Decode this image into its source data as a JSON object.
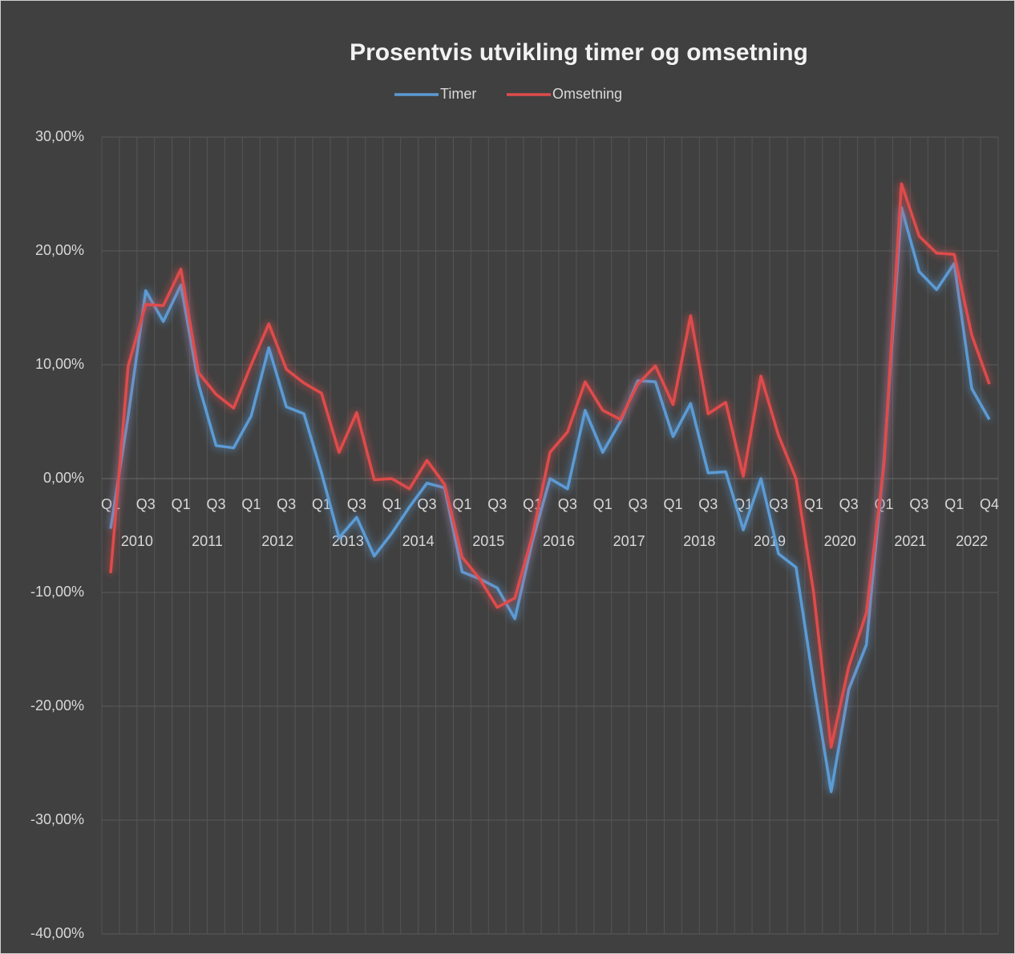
{
  "chart_data": {
    "type": "line",
    "title": "Prosentvis utvikling timer og omsetning",
    "categories": [
      "Q1",
      null,
      "Q3",
      null,
      "Q1",
      null,
      "Q3",
      null,
      "Q1",
      null,
      "Q3",
      null,
      "Q1",
      null,
      "Q3",
      null,
      "Q1",
      null,
      "Q3",
      null,
      "Q1",
      null,
      "Q3",
      null,
      "Q1",
      null,
      "Q3",
      null,
      "Q1",
      null,
      "Q3",
      null,
      "Q1",
      null,
      "Q3",
      null,
      "Q1",
      null,
      "Q3",
      null,
      "Q1",
      null,
      "Q3",
      null,
      "Q1",
      null,
      "Q3",
      null,
      "Q1",
      null,
      "Q4"
    ],
    "category_groups": [
      "2010",
      "2011",
      "2012",
      "2013",
      "2014",
      "2015",
      "2016",
      "2017",
      "2018",
      "2019",
      "2020",
      "2021",
      "2022"
    ],
    "series": [
      {
        "name": "Timer",
        "color": "#5b9bd5",
        "values": [
          -4.4,
          5.5,
          16.5,
          13.8,
          17.0,
          8.3,
          2.9,
          2.7,
          5.5,
          11.5,
          6.3,
          5.7,
          0.5,
          -5.2,
          -3.4,
          -6.8,
          -4.8,
          -2.5,
          -0.4,
          -0.8,
          -8.2,
          -8.8,
          -9.6,
          -12.3,
          -5.5,
          0.0,
          -0.9,
          6.0,
          2.3,
          5.0,
          8.6,
          8.5,
          3.7,
          6.6,
          0.5,
          0.6,
          -4.5,
          0.0,
          -6.6,
          -7.8,
          -18,
          -27.5,
          -18.5,
          -14.6,
          1.5,
          23.8,
          18.2,
          16.6,
          18.9,
          7.9,
          5.2
        ]
      },
      {
        "name": "Omsetning",
        "color": "#e04c4c",
        "values": [
          -8.3,
          9.9,
          15.3,
          15.2,
          18.4,
          9.3,
          7.4,
          6.2,
          10.0,
          13.6,
          9.6,
          8.4,
          7.5,
          2.3,
          5.8,
          -0.1,
          0.0,
          -0.9,
          1.6,
          -0.5,
          -6.9,
          -8.8,
          -11.3,
          -10.5,
          -5.0,
          2.3,
          4.1,
          8.5,
          6.0,
          5.2,
          8.3,
          9.9,
          6.5,
          14.3,
          5.7,
          6.7,
          0.2,
          9.0,
          3.8,
          0.0,
          -10,
          -23.6,
          -16.5,
          -11.8,
          1.2,
          25.9,
          21.3,
          19.8,
          19.7,
          12.6,
          8.3
        ]
      }
    ],
    "ylim": [
      -40,
      30
    ],
    "yticks": [
      {
        "value": -40,
        "label": "-40,00%"
      },
      {
        "value": -30,
        "label": "-30,00%"
      },
      {
        "value": -20,
        "label": "-20,00%"
      },
      {
        "value": -10,
        "label": "-10,00%"
      },
      {
        "value": 0,
        "label": "0,00%"
      },
      {
        "value": 10,
        "label": "10,00%"
      },
      {
        "value": 20,
        "label": "20,00%"
      },
      {
        "value": 30,
        "label": "30,00%"
      }
    ],
    "grid": true,
    "legend": "top"
  }
}
